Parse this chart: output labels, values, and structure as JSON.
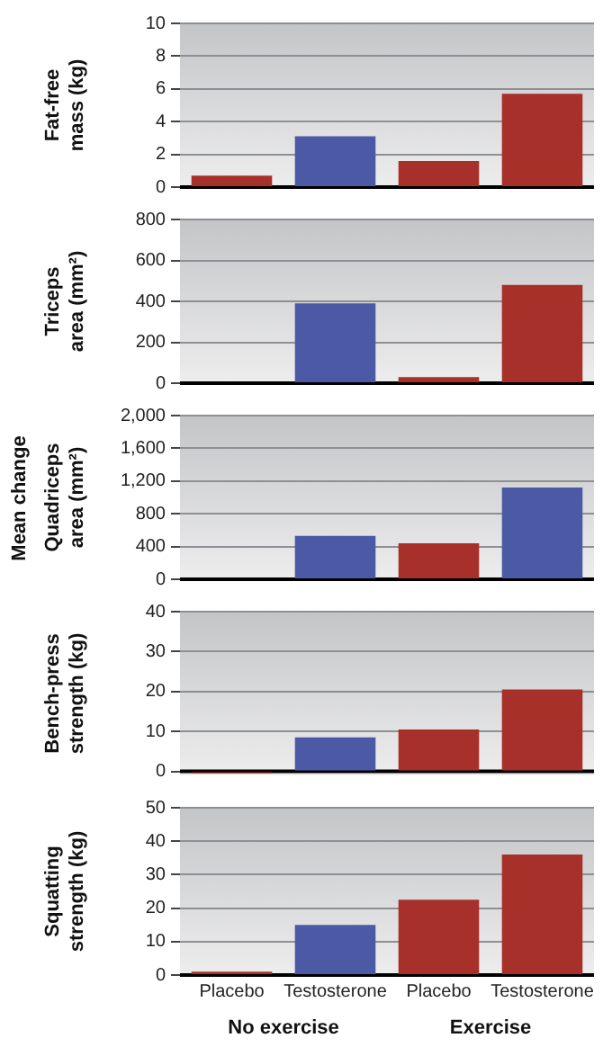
{
  "chart_data": [
    {
      "type": "bar",
      "ylabel": "Fat-free mass (kg)",
      "categories": [
        null,
        null,
        null,
        null
      ],
      "values": [
        0.7,
        3.1,
        1.6,
        5.7
      ],
      "colors": [
        "#a8302a",
        "#4c5aa6",
        "#a8302a",
        "#a8302a"
      ],
      "ylim": [
        0,
        10
      ],
      "yticks": [
        0,
        2,
        4,
        6,
        8,
        10
      ],
      "grid": "y",
      "legend": false,
      "tick_labels": "y"
    },
    {
      "type": "bar",
      "ylabel": "Triceps area (mm²)",
      "categories": [
        null,
        null,
        null,
        null
      ],
      "values": [
        0,
        390,
        30,
        480
      ],
      "colors": [
        "#a8302a",
        "#4c5aa6",
        "#a8302a",
        "#a8302a"
      ],
      "ylim": [
        0,
        800
      ],
      "yticks": [
        0,
        200,
        400,
        600,
        800
      ],
      "grid": "y",
      "legend": false,
      "tick_labels": "y"
    },
    {
      "type": "bar",
      "ylabel": "Quadriceps area (mm²)",
      "categories": [
        null,
        null,
        null,
        null
      ],
      "values": [
        0,
        530,
        440,
        1120
      ],
      "colors": [
        "#a8302a",
        "#4c5aa6",
        "#a8302a",
        "#4c5aa6"
      ],
      "ylim": [
        0,
        2000
      ],
      "yticks": [
        0,
        400,
        800,
        {
          "value": 1200,
          "label": "1,200"
        },
        {
          "value": 1600,
          "label": "1,600"
        },
        {
          "value": 2000,
          "label": "2,000"
        }
      ],
      "grid": "y",
      "legend": false,
      "tick_labels": "y",
      "annotations": [
        "Mean change"
      ]
    },
    {
      "type": "bar",
      "ylabel": "Bench-press strength (kg)",
      "categories": [
        null,
        null,
        null,
        null
      ],
      "values": [
        -0.5,
        8.5,
        10.5,
        20.5
      ],
      "colors": [
        "#a8302a",
        "#4c5aa6",
        "#a8302a",
        "#a8302a"
      ],
      "ylim": [
        -1,
        40
      ],
      "yticks": [
        0,
        10,
        20,
        30,
        40
      ],
      "grid": "y",
      "legend": false,
      "tick_labels": "y"
    },
    {
      "type": "bar",
      "ylabel": "Squatting strength (kg)",
      "categories": [
        "Placebo",
        "Testosterone",
        "Placebo",
        "Testosterone"
      ],
      "values": [
        1,
        15,
        22.5,
        36
      ],
      "colors": [
        "#a8302a",
        "#4c5aa6",
        "#a8302a",
        "#a8302a"
      ],
      "ylim": [
        0,
        50
      ],
      "yticks": [
        0,
        10,
        20,
        30,
        40,
        50
      ],
      "grid": "y",
      "legend": false,
      "annotations": [
        "No exercise",
        "Exercise"
      ]
    }
  ]
}
